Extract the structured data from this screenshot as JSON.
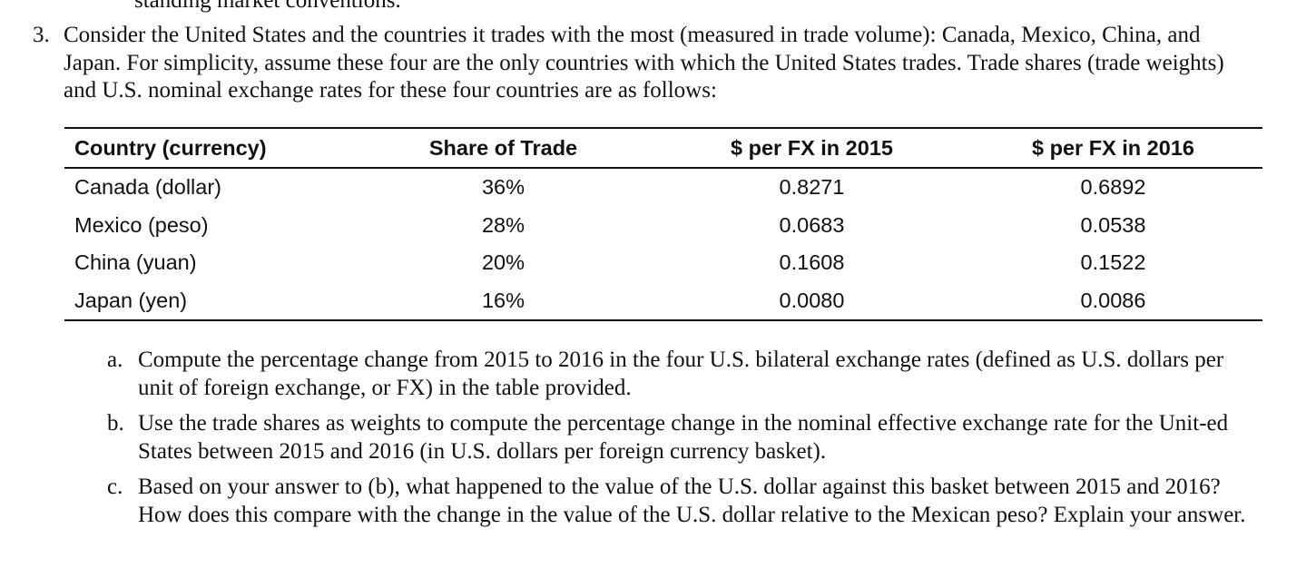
{
  "cut_text": "standing market conventions.",
  "problem": {
    "number": "3.",
    "text": "Consider the United States and the countries it trades with the most (measured in trade volume): Canada, Mexico, China, and Japan. For simplicity, assume these four are the only countries with which the United States trades. Trade shares (trade weights) and U.S. nominal exchange rates for these four countries are as follows:"
  },
  "table": {
    "headers": {
      "country": "Country (currency)",
      "share": "Share of Trade",
      "fx2015": "$ per FX in 2015",
      "fx2016": "$ per FX in 2016"
    },
    "rows": [
      {
        "country": "Canada (dollar)",
        "share": "36%",
        "fx2015": "0.8271",
        "fx2016": "0.6892"
      },
      {
        "country": "Mexico (peso)",
        "share": "28%",
        "fx2015": "0.0683",
        "fx2016": "0.0538"
      },
      {
        "country": "China (yuan)",
        "share": "20%",
        "fx2015": "0.1608",
        "fx2016": "0.1522"
      },
      {
        "country": "Japan (yen)",
        "share": "16%",
        "fx2015": "0.0080",
        "fx2016": "0.0086"
      }
    ]
  },
  "questions": [
    {
      "letter": "a.",
      "text": "Compute the percentage change from 2015 to 2016 in the four U.S. bilateral exchange rates (defined as U.S. dollars per unit of foreign exchange, or FX) in the table provided."
    },
    {
      "letter": "b.",
      "text": "Use the trade shares as weights to compute the percentage change in the nominal effective exchange rate for the Unit-ed States between 2015 and 2016 (in U.S. dollars per foreign currency basket)."
    },
    {
      "letter": "c.",
      "text": "Based on your answer to (b), what happened to the value of the U.S. dollar against this basket between 2015 and 2016? How does this compare with the change in the value of the U.S. dollar relative to the Mexican peso? Explain your answer."
    }
  ]
}
